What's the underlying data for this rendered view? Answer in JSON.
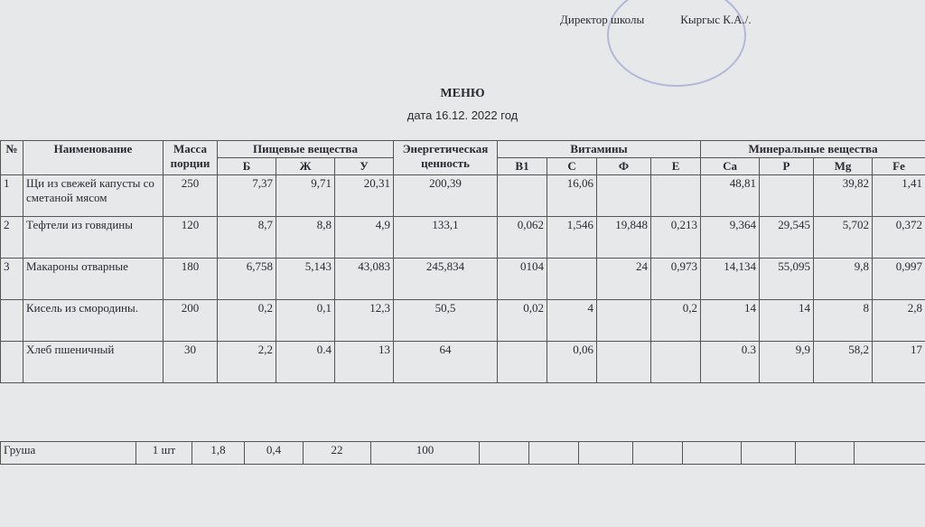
{
  "header": {
    "signature": "Директор школы",
    "signer": "Кыргыс К.А./."
  },
  "title": "МЕНЮ",
  "date": "дата 16.12. 2022 год",
  "table": {
    "header_top": [
      "№",
      "Наименование",
      "Масса порции",
      "Пищевые вещества",
      "Энергетическая ценность",
      "Витамины",
      "Минеральные вещества"
    ],
    "header_sub": [
      "Б",
      "Ж",
      "У",
      "B1",
      "C",
      "Ф",
      "E",
      "Ca",
      "P",
      "Mg",
      "Fe"
    ],
    "rows": [
      [
        "1",
        "Щи из свежей капусты со сметаной мясом",
        "250",
        "7,37",
        "9,71",
        "20,31",
        "200,39",
        null,
        "16,06",
        null,
        null,
        "48,81",
        null,
        "39,82",
        "1,41"
      ],
      [
        "2",
        "Тефтели из говядины",
        "120",
        "8,7",
        "8,8",
        "4,9",
        "133,1",
        "0,062",
        "1,546",
        "19,848",
        "0,213",
        "9,364",
        "29,545",
        "5,702",
        "0,372"
      ],
      [
        "3",
        "Макароны отварные",
        "180",
        "6,758",
        "5,143",
        "43,083",
        "245,834",
        "0104",
        null,
        "24",
        "0,973",
        "14,134",
        "55,095",
        "9,8",
        "0,997"
      ],
      [
        null,
        "Кисель из смородины.",
        "200",
        "0,2",
        "0,1",
        "12,3",
        "50,5",
        "0,02",
        "4",
        null,
        "0,2",
        "14",
        "14",
        "8",
        "2,8"
      ],
      [
        null,
        "Хлеб пшеничный",
        "30",
        "2,2",
        "0.4",
        "13",
        "64",
        null,
        "0,06",
        null,
        null,
        "0.3",
        "9,9",
        "58,2",
        "17"
      ]
    ],
    "extra": [
      "Груша",
      "1 шт",
      "1,8",
      "0,4",
      "22",
      "100"
    ]
  }
}
